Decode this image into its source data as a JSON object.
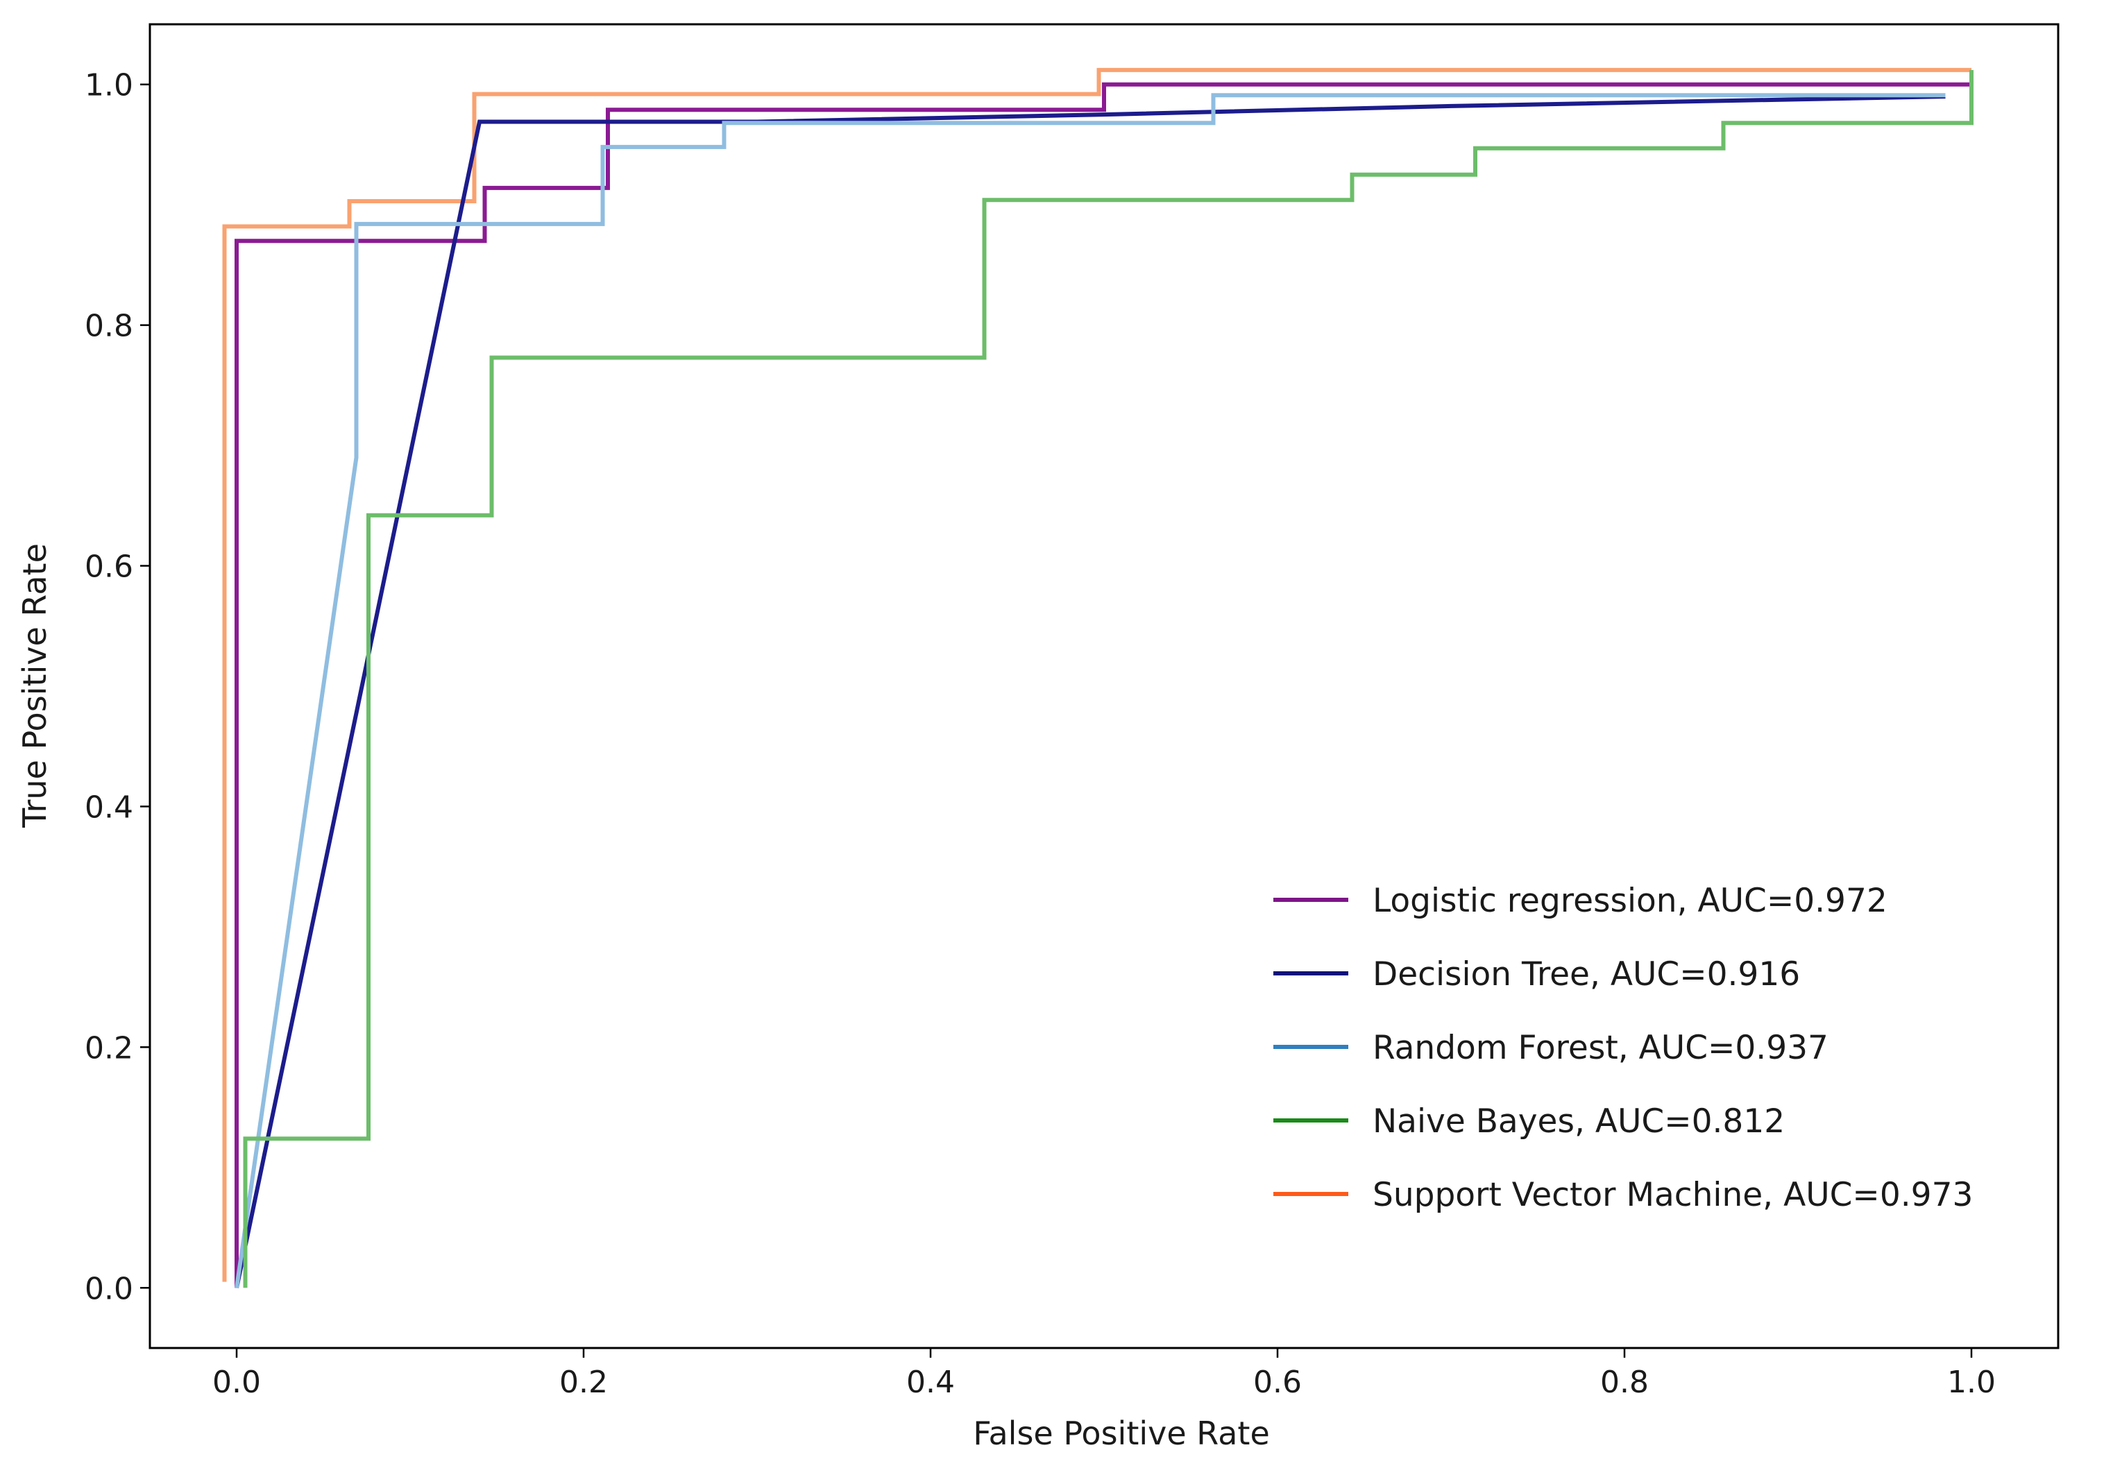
{
  "chart_data": {
    "type": "line",
    "title": "",
    "xlabel": "False Positive Rate",
    "ylabel": "True Positive Rate",
    "xlim": [
      -0.05,
      1.05
    ],
    "ylim": [
      -0.05,
      1.05
    ],
    "xticks": [
      0.0,
      0.2,
      0.4,
      0.6,
      0.8,
      1.0
    ],
    "xtick_labels": [
      "0.0",
      "0.2",
      "0.4",
      "0.6",
      "0.8",
      "1.0"
    ],
    "yticks": [
      0.0,
      0.2,
      0.4,
      0.6,
      0.8,
      1.0
    ],
    "ytick_labels": [
      "0.0",
      "0.2",
      "0.4",
      "0.6",
      "0.8",
      "1.0"
    ],
    "grid": false,
    "legend_position": "lower-right",
    "series": [
      {
        "name": "Support Vector Machine",
        "label": "Support Vector Machine, AUC=0.973",
        "auc": 0.973,
        "line_color": "#f9a270",
        "legend_color": "#ff5a1a",
        "points": [
          [
            -0.007,
            0.005
          ],
          [
            -0.007,
            0.882
          ],
          [
            0.065,
            0.882
          ],
          [
            0.065,
            0.903
          ],
          [
            0.137,
            0.903
          ],
          [
            0.137,
            0.992
          ],
          [
            0.497,
            0.992
          ],
          [
            0.497,
            1.012
          ],
          [
            1.0,
            1.012
          ]
        ]
      },
      {
        "name": "Logistic regression",
        "label": "Logistic regression, AUC=0.972",
        "auc": 0.972,
        "line_color": "#8b1a93",
        "legend_color": "#7d1487",
        "points": [
          [
            0.0,
            0.0
          ],
          [
            0.0,
            0.87
          ],
          [
            0.143,
            0.87
          ],
          [
            0.143,
            0.914
          ],
          [
            0.214,
            0.914
          ],
          [
            0.214,
            0.979
          ],
          [
            0.5,
            0.979
          ],
          [
            0.5,
            1.0
          ],
          [
            1.0,
            1.0
          ]
        ]
      },
      {
        "name": "Decision Tree",
        "label": "Decision Tree, AUC=0.916",
        "auc": 0.916,
        "line_color": "#1c1c8c",
        "legend_color": "#10107c",
        "points": [
          [
            0.0,
            0.0
          ],
          [
            0.14,
            0.969
          ],
          [
            0.3,
            0.969
          ],
          [
            0.5,
            0.975
          ],
          [
            0.7,
            0.982
          ],
          [
            0.985,
            0.99
          ]
        ]
      },
      {
        "name": "Random Forest",
        "label": "Random Forest, AUC=0.937",
        "auc": 0.937,
        "line_color": "#8fbde0",
        "legend_color": "#2f7fbf",
        "points": [
          [
            0.0,
            0.0
          ],
          [
            0.069,
            0.69
          ],
          [
            0.069,
            0.884
          ],
          [
            0.211,
            0.884
          ],
          [
            0.211,
            0.948
          ],
          [
            0.281,
            0.948
          ],
          [
            0.281,
            0.968
          ],
          [
            0.563,
            0.968
          ],
          [
            0.563,
            0.991
          ],
          [
            0.985,
            0.991
          ]
        ]
      },
      {
        "name": "Naive Bayes",
        "label": "Naive Bayes, AUC=0.812",
        "auc": 0.812,
        "line_color": "#6cbd6a",
        "legend_color": "#1a8a1a",
        "points": [
          [
            0.005,
            0.0
          ],
          [
            0.005,
            0.124
          ],
          [
            0.076,
            0.124
          ],
          [
            0.076,
            0.642
          ],
          [
            0.147,
            0.642
          ],
          [
            0.147,
            0.773
          ],
          [
            0.431,
            0.773
          ],
          [
            0.431,
            0.904
          ],
          [
            0.643,
            0.904
          ],
          [
            0.643,
            0.925
          ],
          [
            0.714,
            0.925
          ],
          [
            0.714,
            0.947
          ],
          [
            0.857,
            0.947
          ],
          [
            0.857,
            0.968
          ],
          [
            1.0,
            0.968
          ],
          [
            1.0,
            1.012
          ]
        ]
      }
    ],
    "legend_order": [
      "Logistic regression",
      "Decision Tree",
      "Random Forest",
      "Naive Bayes",
      "Support Vector Machine"
    ]
  }
}
